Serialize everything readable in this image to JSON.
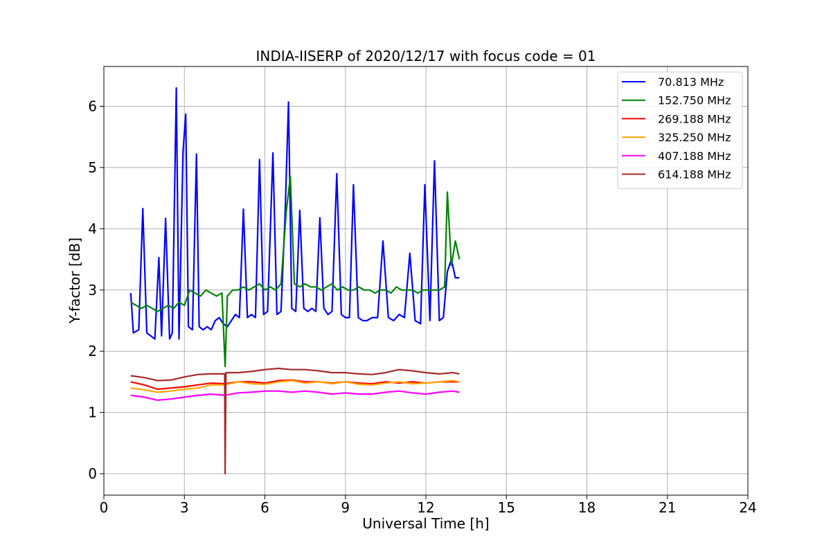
{
  "chart_data": {
    "type": "line",
    "title": "INDIA-IISERP of 2020/12/17 with focus code = 01",
    "xlabel": "Universal Time [h]",
    "ylabel": "Y-factor [dB]",
    "xlim": [
      0,
      24
    ],
    "ylim": [
      -0.35,
      6.65
    ],
    "xticks": [
      0,
      3,
      6,
      9,
      12,
      15,
      18,
      21,
      24
    ],
    "xtick_labels": [
      "0",
      "3",
      "6",
      "9",
      "12",
      "15",
      "18",
      "21",
      "24"
    ],
    "yticks": [
      0,
      1,
      2,
      3,
      4,
      5,
      6
    ],
    "ytick_labels": [
      "0",
      "1",
      "2",
      "3",
      "4",
      "5",
      "6"
    ],
    "grid": true,
    "legend_position": "top-right",
    "series": [
      {
        "name": "70.813 MHz",
        "color": "#0000ff",
        "x": [
          1.0,
          1.1,
          1.3,
          1.45,
          1.6,
          1.75,
          1.9,
          2.05,
          2.15,
          2.3,
          2.45,
          2.55,
          2.7,
          2.8,
          2.95,
          3.05,
          3.15,
          3.3,
          3.45,
          3.55,
          3.7,
          3.85,
          4.0,
          4.15,
          4.3,
          4.45,
          4.6,
          4.75,
          4.9,
          5.05,
          5.2,
          5.35,
          5.5,
          5.65,
          5.8,
          5.95,
          6.1,
          6.3,
          6.45,
          6.6,
          6.75,
          6.88,
          7.0,
          7.15,
          7.3,
          7.45,
          7.6,
          7.75,
          7.9,
          8.05,
          8.2,
          8.35,
          8.5,
          8.68,
          8.85,
          9.0,
          9.15,
          9.3,
          9.48,
          9.65,
          9.8,
          10.0,
          10.2,
          10.4,
          10.6,
          10.8,
          11.0,
          11.2,
          11.4,
          11.6,
          11.8,
          11.96,
          12.15,
          12.32,
          12.5,
          12.65,
          12.8,
          12.95,
          13.1,
          13.25
        ],
        "y": [
          2.95,
          2.3,
          2.35,
          4.33,
          2.3,
          2.25,
          2.2,
          3.53,
          2.25,
          4.17,
          2.2,
          2.3,
          6.3,
          2.2,
          5.26,
          5.87,
          2.4,
          2.35,
          5.22,
          2.4,
          2.35,
          2.4,
          2.35,
          2.5,
          2.55,
          2.45,
          2.4,
          2.5,
          2.6,
          2.55,
          4.32,
          2.55,
          2.6,
          2.55,
          5.13,
          2.6,
          2.65,
          5.24,
          2.6,
          2.65,
          4.2,
          6.07,
          2.7,
          2.65,
          4.3,
          2.7,
          2.65,
          2.7,
          2.65,
          4.18,
          2.7,
          2.6,
          2.65,
          4.9,
          2.6,
          2.55,
          2.55,
          4.72,
          2.55,
          2.5,
          2.5,
          2.55,
          2.55,
          3.8,
          2.55,
          2.5,
          2.6,
          2.55,
          3.6,
          2.5,
          2.45,
          4.72,
          2.5,
          5.11,
          2.5,
          2.55,
          3.3,
          3.5,
          3.2,
          3.2
        ]
      },
      {
        "name": "152.750 MHz",
        "color": "#008000",
        "x": [
          1.0,
          1.2,
          1.4,
          1.6,
          1.8,
          2.0,
          2.2,
          2.4,
          2.6,
          2.8,
          3.0,
          3.2,
          3.4,
          3.6,
          3.8,
          4.0,
          4.2,
          4.4,
          4.52,
          4.6,
          4.8,
          5.0,
          5.2,
          5.4,
          5.6,
          5.8,
          6.0,
          6.2,
          6.4,
          6.6,
          6.8,
          6.95,
          7.1,
          7.3,
          7.5,
          7.7,
          7.9,
          8.1,
          8.3,
          8.5,
          8.7,
          8.9,
          9.1,
          9.3,
          9.5,
          9.7,
          9.9,
          10.1,
          10.3,
          10.5,
          10.7,
          10.9,
          11.1,
          11.3,
          11.5,
          11.7,
          11.9,
          12.1,
          12.3,
          12.5,
          12.7,
          12.8,
          12.95,
          13.1,
          13.25
        ],
        "y": [
          2.8,
          2.75,
          2.7,
          2.75,
          2.7,
          2.65,
          2.7,
          2.75,
          2.7,
          2.8,
          2.75,
          3.0,
          2.95,
          2.9,
          3.0,
          2.95,
          2.9,
          2.95,
          1.75,
          2.9,
          3.0,
          3.0,
          3.05,
          3.0,
          3.05,
          3.1,
          3.0,
          3.05,
          3.0,
          3.1,
          4.3,
          4.85,
          3.1,
          3.05,
          3.1,
          3.05,
          3.05,
          3.0,
          3.05,
          3.1,
          3.0,
          3.05,
          3.0,
          3.0,
          3.05,
          3.0,
          3.0,
          2.95,
          3.0,
          3.0,
          2.95,
          3.05,
          3.0,
          3.0,
          3.0,
          2.95,
          3.0,
          3.0,
          3.0,
          3.0,
          3.05,
          4.6,
          3.4,
          3.8,
          3.5
        ]
      },
      {
        "name": "269.188 MHz",
        "color": "#ff0000",
        "x": [
          1.0,
          1.5,
          2.0,
          2.5,
          3.0,
          3.5,
          4.0,
          4.5,
          5.0,
          5.5,
          6.0,
          6.5,
          7.0,
          7.5,
          8.0,
          8.5,
          9.0,
          9.5,
          10.0,
          10.5,
          11.0,
          11.5,
          12.0,
          12.5,
          13.0,
          13.25
        ],
        "y": [
          1.5,
          1.45,
          1.38,
          1.4,
          1.42,
          1.45,
          1.48,
          1.47,
          1.5,
          1.5,
          1.48,
          1.52,
          1.53,
          1.5,
          1.5,
          1.48,
          1.5,
          1.48,
          1.47,
          1.5,
          1.48,
          1.5,
          1.48,
          1.5,
          1.5,
          1.5
        ]
      },
      {
        "name": "325.250 MHz",
        "color": "#ffa500",
        "x": [
          1.0,
          1.5,
          2.0,
          2.5,
          3.0,
          3.5,
          4.0,
          4.5,
          5.0,
          5.5,
          6.0,
          6.5,
          7.0,
          7.5,
          8.0,
          8.5,
          9.0,
          9.5,
          10.0,
          10.5,
          11.0,
          11.5,
          12.0,
          12.5,
          13.0,
          13.25
        ],
        "y": [
          1.4,
          1.37,
          1.33,
          1.35,
          1.38,
          1.4,
          1.45,
          1.45,
          1.5,
          1.47,
          1.46,
          1.5,
          1.52,
          1.48,
          1.5,
          1.47,
          1.5,
          1.46,
          1.45,
          1.48,
          1.5,
          1.47,
          1.48,
          1.5,
          1.52,
          1.5
        ]
      },
      {
        "name": "407.188 MHz",
        "color": "#ff00ff",
        "x": [
          1.0,
          1.5,
          2.0,
          2.5,
          3.0,
          3.5,
          4.0,
          4.5,
          5.0,
          5.5,
          6.0,
          6.5,
          7.0,
          7.5,
          8.0,
          8.5,
          9.0,
          9.5,
          10.0,
          10.5,
          11.0,
          11.5,
          12.0,
          12.5,
          13.0,
          13.25
        ],
        "y": [
          1.28,
          1.25,
          1.2,
          1.22,
          1.25,
          1.28,
          1.3,
          1.28,
          1.32,
          1.33,
          1.35,
          1.35,
          1.33,
          1.35,
          1.33,
          1.3,
          1.32,
          1.3,
          1.3,
          1.33,
          1.35,
          1.32,
          1.3,
          1.33,
          1.35,
          1.33
        ]
      },
      {
        "name": "614.188 MHz",
        "color": "#a52a2a",
        "x": [
          1.0,
          1.5,
          2.0,
          2.5,
          3.0,
          3.5,
          4.0,
          4.5,
          4.52,
          4.55,
          5.0,
          5.5,
          6.0,
          6.5,
          7.0,
          7.5,
          8.0,
          8.5,
          9.0,
          9.5,
          10.0,
          10.5,
          11.0,
          11.5,
          12.0,
          12.5,
          13.0,
          13.25
        ],
        "y": [
          1.6,
          1.57,
          1.52,
          1.53,
          1.58,
          1.62,
          1.63,
          1.63,
          0.0,
          1.65,
          1.65,
          1.67,
          1.7,
          1.72,
          1.7,
          1.7,
          1.68,
          1.65,
          1.65,
          1.63,
          1.62,
          1.65,
          1.7,
          1.68,
          1.65,
          1.63,
          1.65,
          1.63
        ]
      }
    ]
  }
}
